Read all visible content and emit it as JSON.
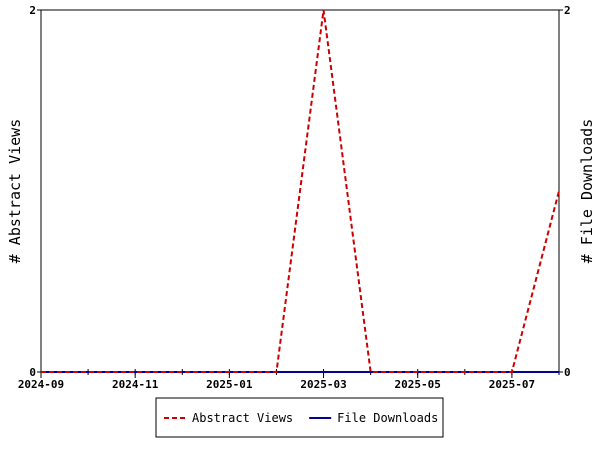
{
  "chart_data": {
    "type": "line",
    "x": [
      "2024-09",
      "2024-10",
      "2024-11",
      "2024-12",
      "2025-01",
      "2025-02",
      "2025-03",
      "2025-04",
      "2025-05",
      "2025-06",
      "2025-07",
      "2025-08"
    ],
    "xticks": [
      "2024-09",
      "2024-11",
      "2025-01",
      "2025-03",
      "2025-05",
      "2025-07"
    ],
    "y_label": "# Abstract Views",
    "y2_label": "# File Downloads",
    "ylim": [
      0,
      2
    ],
    "yticks": [
      0,
      2
    ],
    "y2lim": [
      0,
      2
    ],
    "y2ticks": [
      0,
      2
    ],
    "series": [
      {
        "name": "Abstract Views",
        "color": "#cc0000",
        "dashed": true,
        "values": [
          0,
          0,
          0,
          0,
          0,
          0,
          2,
          0,
          0,
          0,
          0,
          1
        ]
      },
      {
        "name": "File Downloads",
        "color": "#000099",
        "dashed": false,
        "axis": "y2",
        "values": [
          0,
          0,
          0,
          0,
          0,
          0,
          0,
          0,
          0,
          0,
          0,
          0
        ]
      }
    ],
    "legend": "bottom"
  }
}
